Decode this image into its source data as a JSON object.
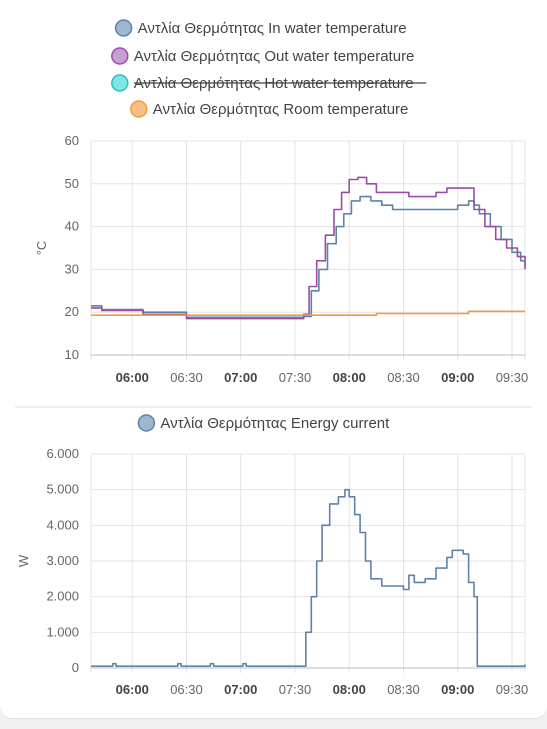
{
  "charts": [
    {
      "type": "line",
      "legend": [
        {
          "name": "Αντλία Θερμότητας In water temperature",
          "color": "#5f83a8",
          "fill": "#9fb6cf",
          "hidden": false
        },
        {
          "name": "Αντλία Θερμότητας Out water temperature",
          "color": "#9a4ca8",
          "fill": "#c99fd1",
          "hidden": false
        },
        {
          "name": "Αντλία Θερμότητας Hot water temperature",
          "color": "#2fbdb8",
          "fill": "#7fe6e3",
          "hidden": true
        },
        {
          "name": "Αντλία Θερμότητας Room temperature",
          "color": "#f49a3c",
          "fill": "#f8bf85",
          "hidden": false
        }
      ],
      "ylabel": "°C",
      "ylim": [
        10,
        60
      ],
      "yticks": [
        "60",
        "50",
        "40",
        "30",
        "20",
        "10"
      ],
      "yvals": [
        60,
        50,
        40,
        30,
        20,
        10
      ],
      "xticks": [
        {
          "label": "06:00",
          "bold": true,
          "t": 6.0
        },
        {
          "label": "06:30",
          "bold": false,
          "t": 6.5
        },
        {
          "label": "07:00",
          "bold": true,
          "t": 7.0
        },
        {
          "label": "07:30",
          "bold": false,
          "t": 7.5
        },
        {
          "label": "08:00",
          "bold": true,
          "t": 8.0
        },
        {
          "label": "08:30",
          "bold": false,
          "t": 8.5
        },
        {
          "label": "09:00",
          "bold": true,
          "t": 9.0
        },
        {
          "label": "09:30",
          "bold": false,
          "t": 9.5
        }
      ],
      "xlim": [
        5.62,
        9.62
      ],
      "series": [
        {
          "name": "Αντλία Θερμότητας In water temperature",
          "color": "#5f83a8",
          "points": [
            [
              5.62,
              21.5
            ],
            [
              5.72,
              20.6
            ],
            [
              6.1,
              20.6
            ],
            [
              6.1,
              20.0
            ],
            [
              6.5,
              20.0
            ],
            [
              6.5,
              18.8
            ],
            [
              7.5,
              18.8
            ],
            [
              7.58,
              19.0
            ],
            [
              7.65,
              25
            ],
            [
              7.72,
              30
            ],
            [
              7.8,
              36
            ],
            [
              7.88,
              40
            ],
            [
              7.95,
              43
            ],
            [
              8.02,
              46
            ],
            [
              8.1,
              47
            ],
            [
              8.2,
              46
            ],
            [
              8.3,
              45
            ],
            [
              8.4,
              44
            ],
            [
              8.6,
              44
            ],
            [
              8.8,
              44
            ],
            [
              8.9,
              44
            ],
            [
              9.0,
              45
            ],
            [
              9.1,
              46
            ],
            [
              9.15,
              45
            ],
            [
              9.2,
              43
            ],
            [
              9.3,
              40
            ],
            [
              9.4,
              37
            ],
            [
              9.5,
              34
            ],
            [
              9.58,
              32
            ],
            [
              9.62,
              31
            ]
          ]
        },
        {
          "name": "Αντλία Θερμότητας Out water temperature",
          "color": "#9a4ca8",
          "points": [
            [
              5.62,
              21.0
            ],
            [
              5.72,
              20.4
            ],
            [
              6.1,
              20.4
            ],
            [
              6.1,
              19.5
            ],
            [
              6.5,
              19.5
            ],
            [
              6.5,
              18.5
            ],
            [
              7.5,
              18.5
            ],
            [
              7.58,
              19.5
            ],
            [
              7.63,
              26
            ],
            [
              7.7,
              32
            ],
            [
              7.78,
              38
            ],
            [
              7.86,
              44
            ],
            [
              7.93,
              48
            ],
            [
              8.0,
              51
            ],
            [
              8.08,
              51.5
            ],
            [
              8.16,
              50
            ],
            [
              8.25,
              48
            ],
            [
              8.4,
              48
            ],
            [
              8.55,
              47
            ],
            [
              8.7,
              47
            ],
            [
              8.8,
              48
            ],
            [
              8.9,
              49
            ],
            [
              9.0,
              49
            ],
            [
              9.08,
              49
            ],
            [
              9.15,
              44
            ],
            [
              9.25,
              40
            ],
            [
              9.35,
              37
            ],
            [
              9.45,
              35
            ],
            [
              9.55,
              33
            ],
            [
              9.62,
              30
            ]
          ]
        },
        {
          "name": "Αντλία Θερμότητας Room temperature",
          "color": "#f49a3c",
          "points": [
            [
              5.62,
              19.3
            ],
            [
              7.9,
              19.3
            ],
            [
              8.25,
              19.3
            ],
            [
              8.25,
              19.7
            ],
            [
              9.1,
              19.7
            ],
            [
              9.1,
              20.2
            ],
            [
              9.62,
              20.2
            ]
          ]
        }
      ]
    },
    {
      "type": "line",
      "legend": [
        {
          "name": "Αντλία Θερμότητας Energy current",
          "color": "#5f83a8",
          "fill": "#9fb6cf",
          "hidden": false
        }
      ],
      "ylabel": "W",
      "ylim": [
        0,
        6000
      ],
      "yticks": [
        "6.000",
        "5.000",
        "4.000",
        "3.000",
        "2.000",
        "1.000",
        "0"
      ],
      "yvals": [
        6000,
        5000,
        4000,
        3000,
        2000,
        1000,
        0
      ],
      "xticks": [
        {
          "label": "06:00",
          "bold": true,
          "t": 6.0
        },
        {
          "label": "06:30",
          "bold": false,
          "t": 6.5
        },
        {
          "label": "07:00",
          "bold": true,
          "t": 7.0
        },
        {
          "label": "07:30",
          "bold": false,
          "t": 7.5
        },
        {
          "label": "08:00",
          "bold": true,
          "t": 8.0
        },
        {
          "label": "08:30",
          "bold": false,
          "t": 8.5
        },
        {
          "label": "09:00",
          "bold": true,
          "t": 9.0
        },
        {
          "label": "09:30",
          "bold": false,
          "t": 9.5
        }
      ],
      "xlim": [
        5.62,
        9.62
      ],
      "series": [
        {
          "name": "Αντλία Θερμότητας Energy current",
          "color": "#5f83a8",
          "points": [
            [
              5.62,
              50
            ],
            [
              5.8,
              50
            ],
            [
              5.82,
              120
            ],
            [
              5.85,
              50
            ],
            [
              6.4,
              50
            ],
            [
              6.42,
              120
            ],
            [
              6.45,
              50
            ],
            [
              6.7,
              50
            ],
            [
              6.72,
              120
            ],
            [
              6.75,
              50
            ],
            [
              7.0,
              50
            ],
            [
              7.02,
              120
            ],
            [
              7.05,
              50
            ],
            [
              7.55,
              50
            ],
            [
              7.6,
              1000
            ],
            [
              7.65,
              2000
            ],
            [
              7.7,
              3000
            ],
            [
              7.75,
              4000
            ],
            [
              7.82,
              4600
            ],
            [
              7.9,
              4800
            ],
            [
              7.96,
              5000
            ],
            [
              8.0,
              4800
            ],
            [
              8.05,
              4300
            ],
            [
              8.1,
              3800
            ],
            [
              8.15,
              3000
            ],
            [
              8.2,
              2500
            ],
            [
              8.3,
              2300
            ],
            [
              8.45,
              2300
            ],
            [
              8.5,
              2200
            ],
            [
              8.55,
              2600
            ],
            [
              8.6,
              2400
            ],
            [
              8.7,
              2500
            ],
            [
              8.8,
              2800
            ],
            [
              8.9,
              3100
            ],
            [
              8.95,
              3300
            ],
            [
              9.05,
              3200
            ],
            [
              9.1,
              2400
            ],
            [
              9.15,
              2000
            ],
            [
              9.18,
              50
            ],
            [
              9.3,
              50
            ],
            [
              9.4,
              50
            ],
            [
              9.6,
              50
            ],
            [
              9.62,
              100
            ]
          ]
        }
      ]
    }
  ]
}
